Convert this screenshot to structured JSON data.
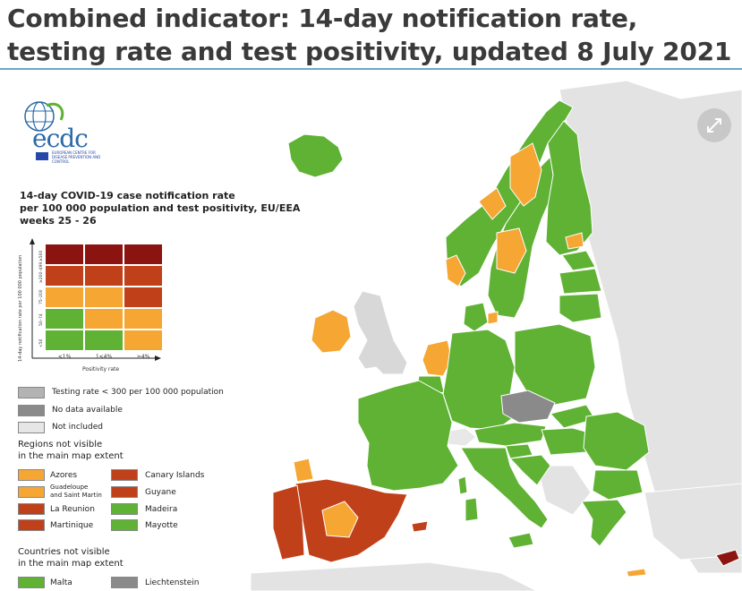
{
  "page": {
    "title": "Combined indicator: 14-day notification rate, testing rate and test positivity, updated 8 July 2021"
  },
  "colors": {
    "green": "#5fb233",
    "orange": "#f5a633",
    "red": "#c0401a",
    "dark_red": "#8b1410",
    "grey_testing": "#b3b3b3",
    "grey_no_data": "#8a8a8a",
    "not_included": "#e6e6e6",
    "sea": "#ffffff",
    "rule": "#69a8c8"
  },
  "logo": {
    "name": "ecdc",
    "subtitle": "EUROPEAN CENTRE FOR DISEASE PREVENTION AND CONTROL"
  },
  "legend": {
    "title_lines": [
      "14-day COVID-19 case notification rate",
      "per 100 000 population and test positivity, EU/EEA",
      "weeks 25 - 26"
    ],
    "y_axis_label": "14-day notification rate per 100 000 population",
    "x_axis_label": "Positivity rate",
    "x_ticks": [
      "<1%",
      "1<4%",
      "≥4%"
    ],
    "y_ticks": [
      "≥500",
      "≥200–499",
      "75–200",
      "50–74",
      "<50"
    ],
    "matrix": [
      [
        "dark_red",
        "dark_red",
        "dark_red"
      ],
      [
        "red",
        "red",
        "red"
      ],
      [
        "orange",
        "orange",
        "red"
      ],
      [
        "green",
        "orange",
        "orange"
      ],
      [
        "green",
        "green",
        "orange"
      ]
    ],
    "grey_items": [
      {
        "label": "Testing rate < 300 per 100 000 population",
        "color": "grey_testing"
      },
      {
        "label": "No data available",
        "color": "grey_no_data"
      },
      {
        "label": "Not included",
        "color": "not_included"
      }
    ],
    "regions_title_lines": [
      "Regions not visible",
      "in the main map extent"
    ],
    "regions": [
      {
        "label": "Azores",
        "color": "orange"
      },
      {
        "label": "Canary Islands",
        "color": "red"
      },
      {
        "label_lines": [
          "Guadeloupe",
          "and Saint Martin"
        ],
        "color": "orange"
      },
      {
        "label": "Guyane",
        "color": "red"
      },
      {
        "label": "La Reunion",
        "color": "red"
      },
      {
        "label": "Madeira",
        "color": "green"
      },
      {
        "label": "Martinique",
        "color": "red"
      },
      {
        "label": "Mayotte",
        "color": "green"
      }
    ],
    "countries_title_lines": [
      "Countries not visible",
      "in the main map extent"
    ],
    "countries": [
      {
        "label": "Malta",
        "color": "green"
      },
      {
        "label": "Liechtenstein",
        "color": "grey_no_data"
      }
    ]
  },
  "map_regions": [
    {
      "name": "Iceland",
      "status": "green"
    },
    {
      "name": "Ireland",
      "status": "orange"
    },
    {
      "name": "Norway",
      "status": "green"
    },
    {
      "name": "Sweden",
      "status": "orange"
    },
    {
      "name": "Finland",
      "status": "green"
    },
    {
      "name": "Denmark",
      "status": "green"
    },
    {
      "name": "Netherlands",
      "status": "orange"
    },
    {
      "name": "Belgium",
      "status": "green"
    },
    {
      "name": "France",
      "status": "green"
    },
    {
      "name": "Spain",
      "status": "red"
    },
    {
      "name": "Portugal",
      "status": "red"
    },
    {
      "name": "Germany",
      "status": "green"
    },
    {
      "name": "Czechia",
      "status": "grey_no_data"
    },
    {
      "name": "Poland",
      "status": "green"
    },
    {
      "name": "Baltic states",
      "status": "green"
    },
    {
      "name": "Italy",
      "status": "green"
    },
    {
      "name": "Austria",
      "status": "green"
    },
    {
      "name": "Hungary",
      "status": "green"
    },
    {
      "name": "Romania",
      "status": "green"
    },
    {
      "name": "Bulgaria",
      "status": "green"
    },
    {
      "name": "Greece",
      "status": "green"
    },
    {
      "name": "Cyprus",
      "status": "dark_red"
    },
    {
      "name": "Switzerland",
      "status": "not_included"
    },
    {
      "name": "United Kingdom",
      "status": "grey_testing"
    }
  ]
}
